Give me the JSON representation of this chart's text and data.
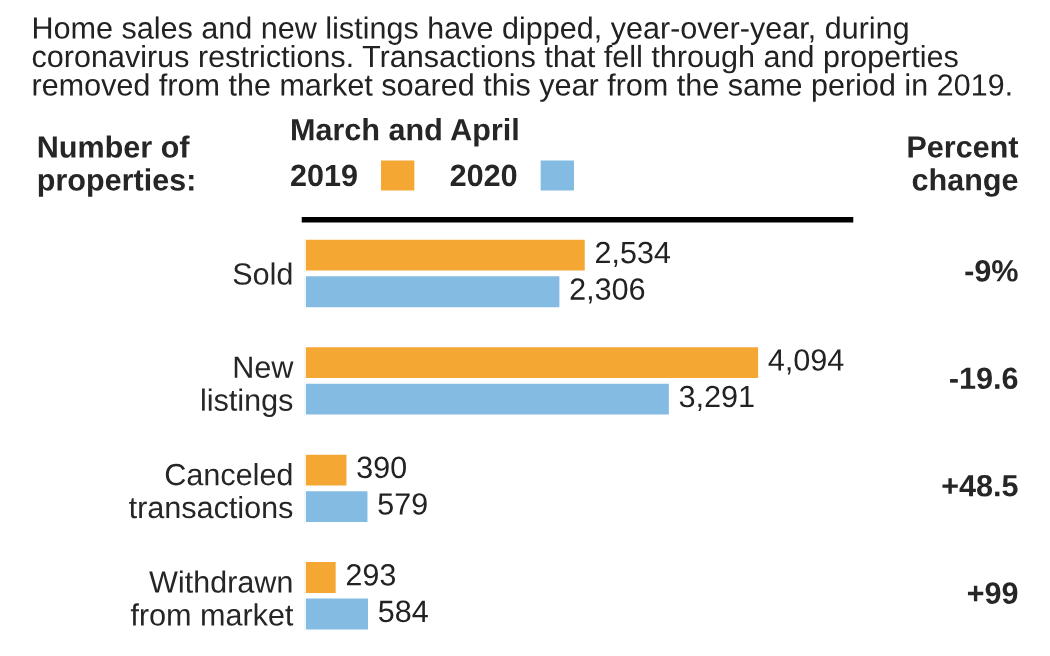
{
  "chart_data": {
    "type": "bar",
    "orientation": "horizontal",
    "subtitle": "Home sales and new listings have dipped, year-over-year, during coronavirus restrictions. Transactions that fell through and properties removed from the market soared this year from the same period in 2019.",
    "ylabel": "Number of properties:",
    "legend_title": "March and April",
    "legend": "top",
    "categories": [
      "Sold",
      "New\nlistings",
      "Canceled\ntransactions",
      "Withdrawn\nfrom market"
    ],
    "series": [
      {
        "name": "2019",
        "color": "#f5a733",
        "values": [
          2534,
          4094,
          390,
          293
        ],
        "value_labels": [
          "2,534",
          "4,094",
          "390",
          "293"
        ]
      },
      {
        "name": "2020",
        "color": "#84bbe2",
        "values": [
          2306,
          3291,
          579,
          584
        ],
        "value_labels": [
          "2,306",
          "3,291",
          "579",
          "584"
        ]
      }
    ],
    "annotations": [
      "Percent change",
      "-9%",
      "-19.6",
      "+48.5",
      "+99"
    ],
    "grid": false
  }
}
